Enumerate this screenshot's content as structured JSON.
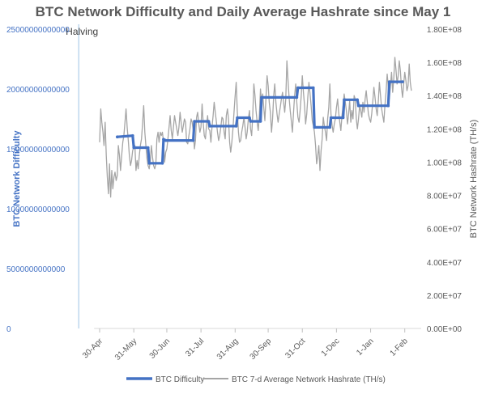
{
  "chart_data": {
    "type": "line",
    "title": "BTC Network Difficulty and Daily Average Hashrate since May 1",
    "ylabel_left": "BTC Network Difficulty",
    "ylabel_right": "BTC Network Hashrate (TH/s)",
    "ylim_left": [
      0,
      25000000000000
    ],
    "ylim_right": [
      0,
      180000000
    ],
    "left_ticks": [
      {
        "value": 0,
        "label": "0"
      },
      {
        "value": 5000000000000,
        "label": "5000000000000"
      },
      {
        "value": 10000000000000,
        "label": "10000000000000"
      },
      {
        "value": 15000000000000,
        "label": "15000000000000"
      },
      {
        "value": 20000000000000,
        "label": "20000000000000"
      },
      {
        "value": 25000000000000,
        "label": "25000000000000"
      }
    ],
    "right_ticks": [
      {
        "value": 0,
        "label": "0.00E+00"
      },
      {
        "value": 20000000,
        "label": "2.00E+07"
      },
      {
        "value": 40000000,
        "label": "4.00E+07"
      },
      {
        "value": 60000000,
        "label": "6.00E+07"
      },
      {
        "value": 80000000,
        "label": "8.00E+07"
      },
      {
        "value": 100000000,
        "label": "1.00E+08"
      },
      {
        "value": 120000000,
        "label": "1.20E+08"
      },
      {
        "value": 140000000,
        "label": "1.40E+08"
      },
      {
        "value": 160000000,
        "label": "1.60E+08"
      },
      {
        "value": 180000000,
        "label": "1.80E+08"
      }
    ],
    "x_range_days": [
      -5,
      290
    ],
    "x_ticks": [
      {
        "day": 0,
        "label": "30-Apr"
      },
      {
        "day": 31,
        "label": "31-May"
      },
      {
        "day": 61,
        "label": "30-Jun"
      },
      {
        "day": 92,
        "label": "31-Jul"
      },
      {
        "day": 123,
        "label": "31-Aug"
      },
      {
        "day": 153,
        "label": "30-Sep"
      },
      {
        "day": 184,
        "label": "31-Oct"
      },
      {
        "day": 215,
        "label": "1-Dec"
      },
      {
        "day": 246,
        "label": "1-Jan"
      },
      {
        "day": 277,
        "label": "1-Feb"
      }
    ],
    "annotation": {
      "label": "Halving",
      "day": -19
    },
    "series": [
      {
        "name": "BTC Difficulty",
        "axis": "left",
        "color": "#4472c4",
        "points": [
          [
            16,
            16000000000000
          ],
          [
            30,
            16100000000000
          ],
          [
            31,
            15100000000000
          ],
          [
            44,
            15100000000000
          ],
          [
            45,
            13800000000000
          ],
          [
            57,
            13800000000000
          ],
          [
            58,
            15800000000000
          ],
          [
            60,
            15700000000000
          ],
          [
            85,
            15700000000000
          ],
          [
            86,
            17300000000000
          ],
          [
            99,
            17300000000000
          ],
          [
            100,
            16900000000000
          ],
          [
            124,
            16900000000000
          ],
          [
            125,
            17600000000000
          ],
          [
            136,
            17600000000000
          ],
          [
            137,
            17300000000000
          ],
          [
            146,
            17300000000000
          ],
          [
            147,
            19300000000000
          ],
          [
            179,
            19300000000000
          ],
          [
            180,
            20100000000000
          ],
          [
            194,
            20100000000000
          ],
          [
            195,
            16800000000000
          ],
          [
            209,
            16800000000000
          ],
          [
            210,
            17600000000000
          ],
          [
            221,
            17600000000000
          ],
          [
            222,
            19100000000000
          ],
          [
            234,
            19100000000000
          ],
          [
            235,
            18600000000000
          ],
          [
            262,
            18600000000000
          ],
          [
            263,
            20600000000000
          ],
          [
            275,
            20600000000000
          ]
        ]
      },
      {
        "name": "BTC 7-d Average Network Hashrate (TH/s)",
        "axis": "right",
        "color": "#a5a5a5",
        "values": [
          112000000,
          132000000,
          124000000,
          118000000,
          110000000,
          124000000,
          104000000,
          91000000,
          81000000,
          99000000,
          79000000,
          95000000,
          84000000,
          91000000,
          94000000,
          89000000,
          92000000,
          110000000,
          104000000,
          95000000,
          104000000,
          112000000,
          116000000,
          124000000,
          132000000,
          121000000,
          113000000,
          104000000,
          98000000,
          101000000,
          107000000,
          109000000,
          110000000,
          95000000,
          101000000,
          96000000,
          104000000,
          110000000,
          114000000,
          123000000,
          134000000,
          118000000,
          110000000,
          102000000,
          98000000,
          96000000,
          101000000,
          110000000,
          103000000,
          98000000,
          96000000,
          99000000,
          114000000,
          118000000,
          112000000,
          118000000,
          116000000,
          118000000,
          112000000,
          100000000,
          106000000,
          108000000,
          114000000,
          121000000,
          128000000,
          119000000,
          114000000,
          121000000,
          128000000,
          124000000,
          120000000,
          116000000,
          121000000,
          130000000,
          124000000,
          118000000,
          122000000,
          126000000,
          124000000,
          112000000,
          111000000,
          116000000,
          120000000,
          126000000,
          124000000,
          119000000,
          108000000,
          113000000,
          127000000,
          130000000,
          123000000,
          118000000,
          121000000,
          135000000,
          124000000,
          116000000,
          114000000,
          122000000,
          128000000,
          120000000,
          119000000,
          112000000,
          121000000,
          128000000,
          136000000,
          130000000,
          124000000,
          118000000,
          113000000,
          116000000,
          121000000,
          127000000,
          126000000,
          118000000,
          114000000,
          128000000,
          132000000,
          126000000,
          112000000,
          106000000,
          112000000,
          120000000,
          130000000,
          140000000,
          148000000,
          130000000,
          118000000,
          112000000,
          113000000,
          118000000,
          122000000,
          127000000,
          121000000,
          114000000,
          118000000,
          126000000,
          131000000,
          120000000,
          116000000,
          128000000,
          147000000,
          140000000,
          131000000,
          124000000,
          119000000,
          128000000,
          144000000,
          136000000,
          141000000,
          133000000,
          125000000,
          139000000,
          152000000,
          146000000,
          136000000,
          130000000,
          118000000,
          126000000,
          140000000,
          147000000,
          136000000,
          129000000,
          124000000,
          129000000,
          133000000,
          138000000,
          142000000,
          136000000,
          130000000,
          138000000,
          161000000,
          149000000,
          139000000,
          131000000,
          125000000,
          118000000,
          130000000,
          140000000,
          147000000,
          136000000,
          127000000,
          124000000,
          131000000,
          140000000,
          152000000,
          142000000,
          134000000,
          123000000,
          129000000,
          139000000,
          148000000,
          141000000,
          134000000,
          125000000,
          122000000,
          118000000,
          110000000,
          99000000,
          104000000,
          110000000,
          95000000,
          107000000,
          114000000,
          127000000,
          122000000,
          118000000,
          113000000,
          126000000,
          133000000,
          147000000,
          129000000,
          122000000,
          118000000,
          123000000,
          126000000,
          133000000,
          138000000,
          130000000,
          124000000,
          119000000,
          128000000,
          134000000,
          141000000,
          136000000,
          131000000,
          123000000,
          129000000,
          137000000,
          124000000,
          131000000,
          126000000,
          140000000,
          138000000,
          126000000,
          120000000,
          126000000,
          134000000,
          131000000,
          127000000,
          136000000,
          130000000,
          138000000,
          143000000,
          136000000,
          129000000,
          126000000,
          124000000,
          129000000,
          137000000,
          145000000,
          139000000,
          132000000,
          128000000,
          137000000,
          148000000,
          140000000,
          132000000,
          128000000,
          124000000,
          134000000,
          142000000,
          153000000,
          146000000,
          138000000,
          146000000,
          154000000,
          142000000,
          150000000,
          163000000,
          156000000,
          147000000,
          152000000,
          161000000,
          155000000,
          145000000,
          139000000,
          147000000,
          154000000,
          149000000,
          143000000,
          146000000,
          159000000,
          148000000,
          143000000
        ]
      }
    ]
  },
  "legend": {
    "difficulty_label": "BTC Difficulty",
    "hashrate_label": "BTC 7-d Average Network Hashrate (TH/s)"
  }
}
